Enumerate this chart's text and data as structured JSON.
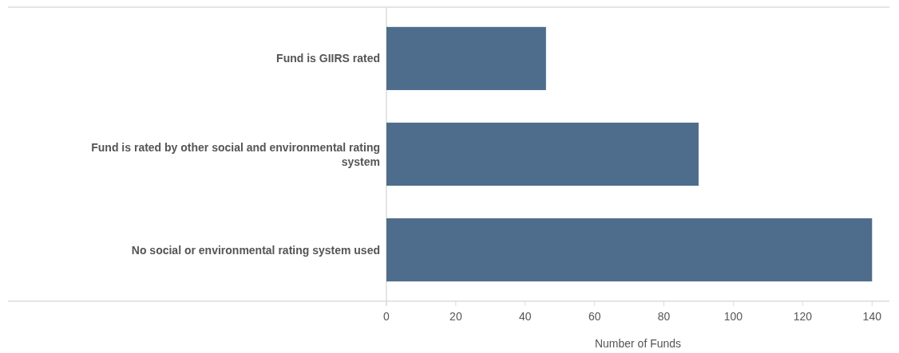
{
  "chart_data": {
    "type": "bar",
    "orientation": "horizontal",
    "categories": [
      "Fund is GIIRS rated",
      "Fund is rated by other social and environmental rating system",
      "No social or environmental rating system used"
    ],
    "values": [
      46,
      90,
      140
    ],
    "color": "#4e6d8c",
    "xlim": [
      0,
      145
    ],
    "xticks": [
      0,
      20,
      40,
      60,
      80,
      100,
      120,
      140
    ],
    "xlabel": "Number of Funds",
    "grid": false
  }
}
